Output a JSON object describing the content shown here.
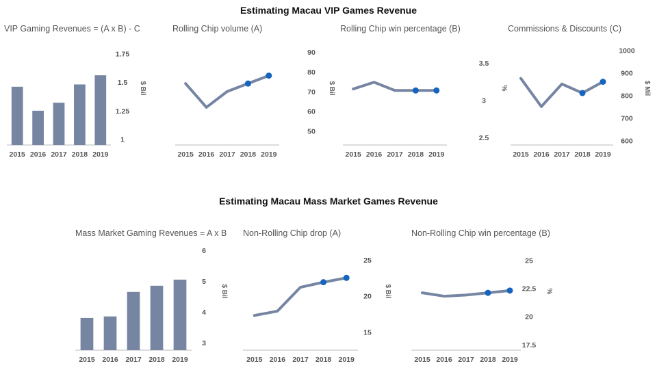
{
  "section_titles": [
    "Estimating Macau VIP Games Revenue",
    "Estimating Macau Mass Market Games Revenue"
  ],
  "colors": {
    "bar": "#7585a2",
    "line": "#7585a2",
    "highlight": "#1565c0",
    "axis": "#bbbbbb"
  },
  "chart_data": [
    {
      "id": "vip-revenue",
      "type": "bar",
      "title": "VIP Gaming Revenues = (A x B) - C",
      "categories": [
        "2015",
        "2016",
        "2017",
        "2018",
        "2019"
      ],
      "values": [
        1.46,
        1.25,
        1.32,
        1.48,
        1.56
      ],
      "ylim": [
        0.95,
        1.8
      ],
      "yticks": [
        "1",
        "1.25",
        "1.5",
        "1.75"
      ],
      "ytick_values": [
        1,
        1.25,
        1.5,
        1.75
      ],
      "ylabel": "$ Bil"
    },
    {
      "id": "vip-rolling-chip-volume",
      "type": "line",
      "title": "Rolling Chip volume (A)",
      "categories": [
        "2015",
        "2016",
        "2017",
        "2018",
        "2019"
      ],
      "values": [
        74,
        62,
        70,
        74,
        78
      ],
      "highlight_from": 3,
      "ylim": [
        43,
        92
      ],
      "yticks": [
        "50",
        "60",
        "70",
        "80",
        "90"
      ],
      "ytick_values": [
        50,
        60,
        70,
        80,
        90
      ],
      "ylabel": "$ Bil"
    },
    {
      "id": "vip-win-percentage",
      "type": "line",
      "title": "Rolling Chip win percentage (B)",
      "categories": [
        "2015",
        "2016",
        "2017",
        "2018",
        "2019"
      ],
      "values": [
        3.15,
        3.24,
        3.13,
        3.13,
        3.13
      ],
      "highlight_from": 3,
      "ylim": [
        2.4,
        3.7
      ],
      "yticks": [
        "2.5",
        "3",
        "3.5"
      ],
      "ytick_values": [
        2.5,
        3,
        3.5
      ],
      "ylabel": "%"
    },
    {
      "id": "vip-commissions",
      "type": "line",
      "title": "Commissions & Discounts (C)",
      "categories": [
        "2015",
        "2016",
        "2017",
        "2018",
        "2019"
      ],
      "values": [
        875,
        750,
        850,
        810,
        860
      ],
      "highlight_from": 3,
      "ylim": [
        580,
        1010
      ],
      "yticks": [
        "600",
        "700",
        "800",
        "900",
        "1000"
      ],
      "ytick_values": [
        600,
        700,
        800,
        900,
        1000
      ],
      "ylabel": "$ Mil"
    },
    {
      "id": "mass-revenue",
      "type": "bar",
      "title": "Mass Market Gaming Revenues = A x B",
      "categories": [
        "2015",
        "2016",
        "2017",
        "2018",
        "2019"
      ],
      "values": [
        3.8,
        3.85,
        4.65,
        4.85,
        5.05
      ],
      "ylim": [
        2.75,
        6.05
      ],
      "yticks": [
        "3",
        "4",
        "5",
        "6"
      ],
      "ytick_values": [
        3,
        4,
        5,
        6
      ],
      "ylabel": "$ Bil"
    },
    {
      "id": "mass-non-rolling-drop",
      "type": "line",
      "title": "Non-Rolling Chip drop (A)",
      "categories": [
        "2015",
        "2016",
        "2017",
        "2018",
        "2019"
      ],
      "values": [
        17.3,
        17.9,
        21.2,
        21.9,
        22.5
      ],
      "highlight_from": 3,
      "ylim": [
        12.5,
        26.5
      ],
      "yticks": [
        "15",
        "20",
        "25"
      ],
      "ytick_values": [
        15,
        20,
        25
      ],
      "ylabel": "$ Bil"
    },
    {
      "id": "mass-win-percentage",
      "type": "line",
      "title": "Non-Rolling Chip win percentage (B)",
      "categories": [
        "2015",
        "2016",
        "2017",
        "2018",
        "2019"
      ],
      "values": [
        22.1,
        21.8,
        21.9,
        22.1,
        22.3
      ],
      "highlight_from": 3,
      "ylim": [
        17,
        26
      ],
      "yticks": [
        "17.5",
        "20",
        "22.5",
        "25"
      ],
      "ytick_values": [
        17.5,
        20,
        22.5,
        25
      ],
      "ylabel": "%"
    }
  ]
}
